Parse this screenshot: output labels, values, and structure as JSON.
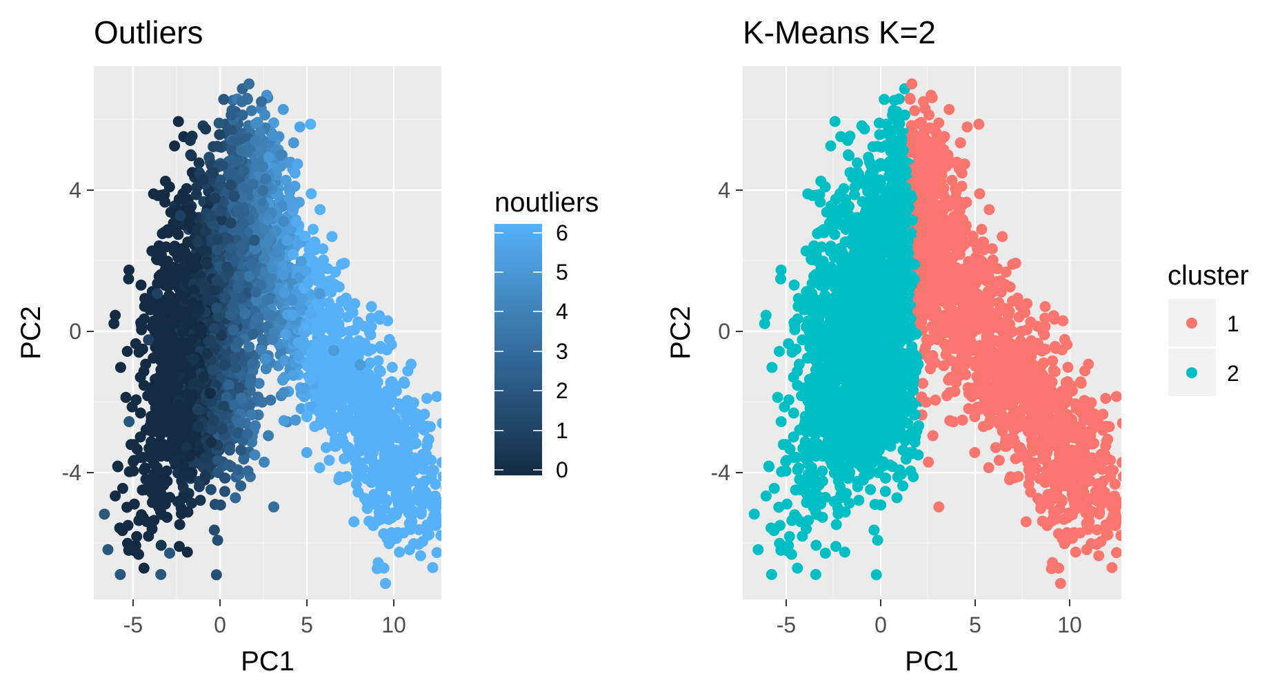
{
  "chart_data": [
    {
      "type": "scatter",
      "title": "Outliers",
      "xlabel": "PC1",
      "ylabel": "PC2",
      "xlim": [
        -7.1,
        12.6
      ],
      "ylim": [
        -7.6,
        7.4
      ],
      "x_ticks": [
        "-5",
        "0",
        "5",
        "10"
      ],
      "y_ticks": [
        "4",
        "0",
        "-4"
      ],
      "grid": true,
      "legend": {
        "title": "noutliers",
        "type": "colorbar",
        "placement": "right",
        "range": [
          0,
          6
        ],
        "ticks": [
          "6",
          "5",
          "4",
          "3",
          "2",
          "1",
          "0"
        ],
        "low_color": "#132B43",
        "high_color": "#56B1F7"
      },
      "color_variable": "noutliers",
      "point_summary": "dense cloud; noutliers rises with PC1 (about 0 near PC1 -1, about 6 beyond PC1 9)",
      "sample_points": [
        [
          1.7,
          6.9,
          3
        ],
        [
          1.3,
          6.4,
          3
        ],
        [
          2.4,
          6.4,
          3
        ],
        [
          0.0,
          5.8,
          2
        ],
        [
          3.5,
          4.9,
          4
        ],
        [
          -2.2,
          3.2,
          1
        ],
        [
          -3.5,
          1.0,
          1
        ],
        [
          -4.0,
          -0.3,
          1
        ],
        [
          -5.1,
          -2.6,
          2
        ],
        [
          -6.5,
          -5.2,
          2
        ],
        [
          -6.3,
          -6.2,
          2
        ],
        [
          -5.6,
          -6.9,
          2
        ],
        [
          -3.3,
          -6.9,
          2
        ],
        [
          -2.8,
          -6.3,
          2
        ],
        [
          3.1,
          -5.0,
          3
        ],
        [
          0.6,
          -3.4,
          2
        ],
        [
          -1.0,
          0.0,
          0
        ],
        [
          -1.3,
          2.0,
          0
        ],
        [
          -0.5,
          -1.8,
          0
        ],
        [
          2.0,
          2.5,
          2
        ],
        [
          5.7,
          1.0,
          5
        ],
        [
          6.5,
          -0.6,
          5
        ],
        [
          8.0,
          -1.0,
          5
        ],
        [
          8.5,
          -5.4,
          6
        ],
        [
          10.8,
          -6.2,
          6
        ],
        [
          11.8,
          -5.5,
          6
        ],
        [
          12.1,
          -5.0,
          6
        ],
        [
          11.0,
          -3.0,
          6
        ],
        [
          9.0,
          -2.0,
          6
        ],
        [
          10.3,
          -3.5,
          6
        ]
      ]
    },
    {
      "type": "scatter",
      "title": "K-Means K=2",
      "xlabel": "PC1",
      "ylabel": "PC2",
      "xlim": [
        -7.1,
        12.6
      ],
      "ylim": [
        -7.6,
        7.4
      ],
      "x_ticks": [
        "-5",
        "0",
        "5",
        "10"
      ],
      "y_ticks": [
        "4",
        "0",
        "-4"
      ],
      "grid": true,
      "legend": {
        "title": "cluster",
        "type": "discrete",
        "placement": "right",
        "entries": [
          {
            "label": "1",
            "color": "#F8766D"
          },
          {
            "label": "2",
            "color": "#00BFC4"
          }
        ]
      },
      "color_variable": "cluster",
      "point_summary": "same points; cluster 2 (teal) for PC1 below about 2, cluster 1 (salmon) for PC1 above about 2",
      "sample_points": [
        [
          1.7,
          6.9,
          1
        ],
        [
          2.3,
          6.4,
          1
        ],
        [
          0.0,
          5.8,
          2
        ],
        [
          0.6,
          5.0,
          2
        ],
        [
          3.5,
          4.9,
          1
        ],
        [
          -2.2,
          3.2,
          2
        ],
        [
          -3.5,
          1.0,
          2
        ],
        [
          -4.0,
          -0.3,
          2
        ],
        [
          -5.1,
          -2.6,
          2
        ],
        [
          -6.5,
          -5.2,
          2
        ],
        [
          -6.3,
          -6.2,
          2
        ],
        [
          -5.6,
          -6.9,
          2
        ],
        [
          -3.3,
          -6.9,
          2
        ],
        [
          -2.8,
          -6.3,
          2
        ],
        [
          1.7,
          -3.5,
          2
        ],
        [
          3.1,
          -5.0,
          1
        ],
        [
          -1.0,
          0.0,
          2
        ],
        [
          -0.5,
          2.0,
          2
        ],
        [
          1.0,
          -2.0,
          2
        ],
        [
          3.0,
          2.5,
          1
        ],
        [
          5.7,
          1.0,
          1
        ],
        [
          6.5,
          -0.6,
          1
        ],
        [
          8.0,
          -1.0,
          1
        ],
        [
          8.5,
          -5.4,
          1
        ],
        [
          10.8,
          -6.2,
          1
        ],
        [
          11.8,
          -5.5,
          1
        ],
        [
          12.1,
          -5.0,
          1
        ],
        [
          11.0,
          -3.0,
          1
        ],
        [
          9.0,
          -2.0,
          1
        ],
        [
          4.0,
          -1.5,
          1
        ]
      ]
    }
  ]
}
